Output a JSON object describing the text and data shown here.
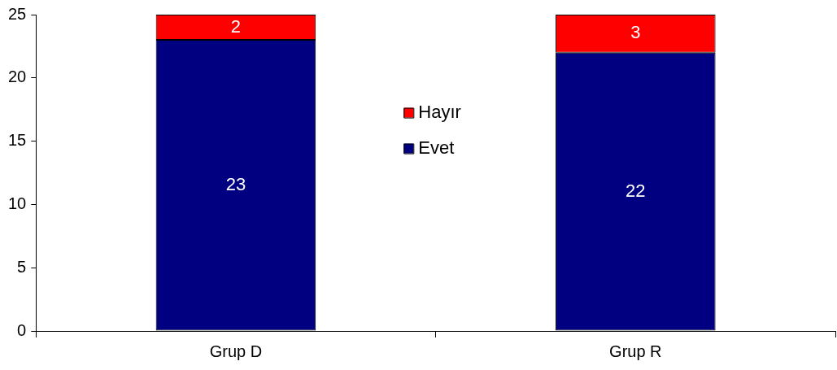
{
  "chart_data": {
    "type": "bar",
    "stacked": true,
    "categories": [
      "Grup D",
      "Grup R"
    ],
    "series": [
      {
        "name": "Evet",
        "color": "#000080",
        "values": [
          23,
          22
        ]
      },
      {
        "name": "Hayır",
        "color": "#ff0000",
        "values": [
          2,
          3
        ]
      }
    ],
    "ylim": [
      0,
      25
    ],
    "yticks": [
      0,
      5,
      10,
      15,
      20,
      25
    ],
    "grid": false,
    "legend": "center",
    "data_labels": true
  }
}
